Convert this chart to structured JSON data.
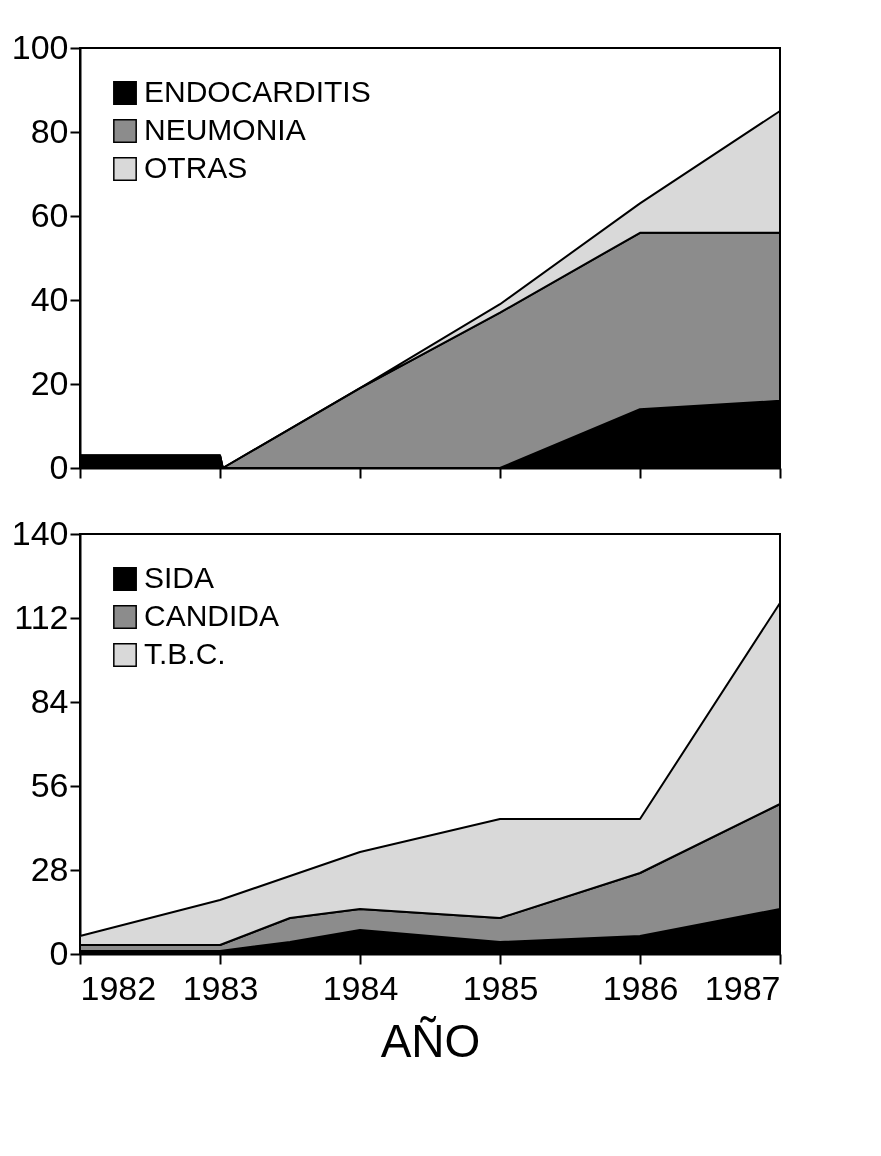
{
  "chart_data": [
    {
      "type": "area",
      "stacked": true,
      "x": [
        1982,
        1983,
        1983.02,
        1984,
        1985,
        1986,
        1987
      ],
      "xlim": [
        1982,
        1987
      ],
      "xticks": [
        1982,
        1983,
        1984,
        1985,
        1986,
        1987
      ],
      "ylim": [
        0,
        100
      ],
      "yticks": [
        0,
        20,
        40,
        60,
        80,
        100
      ],
      "tick_labels": "y",
      "legend": "top left",
      "series": [
        {
          "name": "ENDOCARDITIS",
          "color": "#000000",
          "values": [
            3,
            3,
            0,
            0,
            0,
            14,
            16
          ]
        },
        {
          "name": "NEUMONIA",
          "color": "#8c8c8c",
          "values": [
            0,
            0,
            0,
            19,
            37,
            42,
            40
          ]
        },
        {
          "name": "OTRAS",
          "color": "#d9d9d9",
          "values": [
            0,
            0,
            0,
            0,
            2,
            7,
            29
          ]
        }
      ]
    },
    {
      "type": "area",
      "stacked": true,
      "x": [
        1982,
        1983,
        1983.5,
        1984,
        1985,
        1986,
        1987
      ],
      "xlim": [
        1982,
        1987
      ],
      "xticks": [
        1982,
        1983,
        1984,
        1985,
        1986,
        1987
      ],
      "ylim": [
        0,
        140
      ],
      "yticks": [
        0,
        28,
        56,
        84,
        112,
        140
      ],
      "xlabel": "AÑO",
      "legend": "top left",
      "series": [
        {
          "name": "SIDA",
          "color": "#000000",
          "values": [
            1,
            1,
            4,
            8,
            4,
            6,
            15
          ]
        },
        {
          "name": "CANDIDA",
          "color": "#8c8c8c",
          "values": [
            2,
            2,
            8,
            7,
            8,
            21,
            35
          ]
        },
        {
          "name": "T.B.C.",
          "color": "#d9d9d9",
          "values": [
            3,
            15,
            14,
            19,
            33,
            18,
            67
          ]
        }
      ]
    }
  ]
}
